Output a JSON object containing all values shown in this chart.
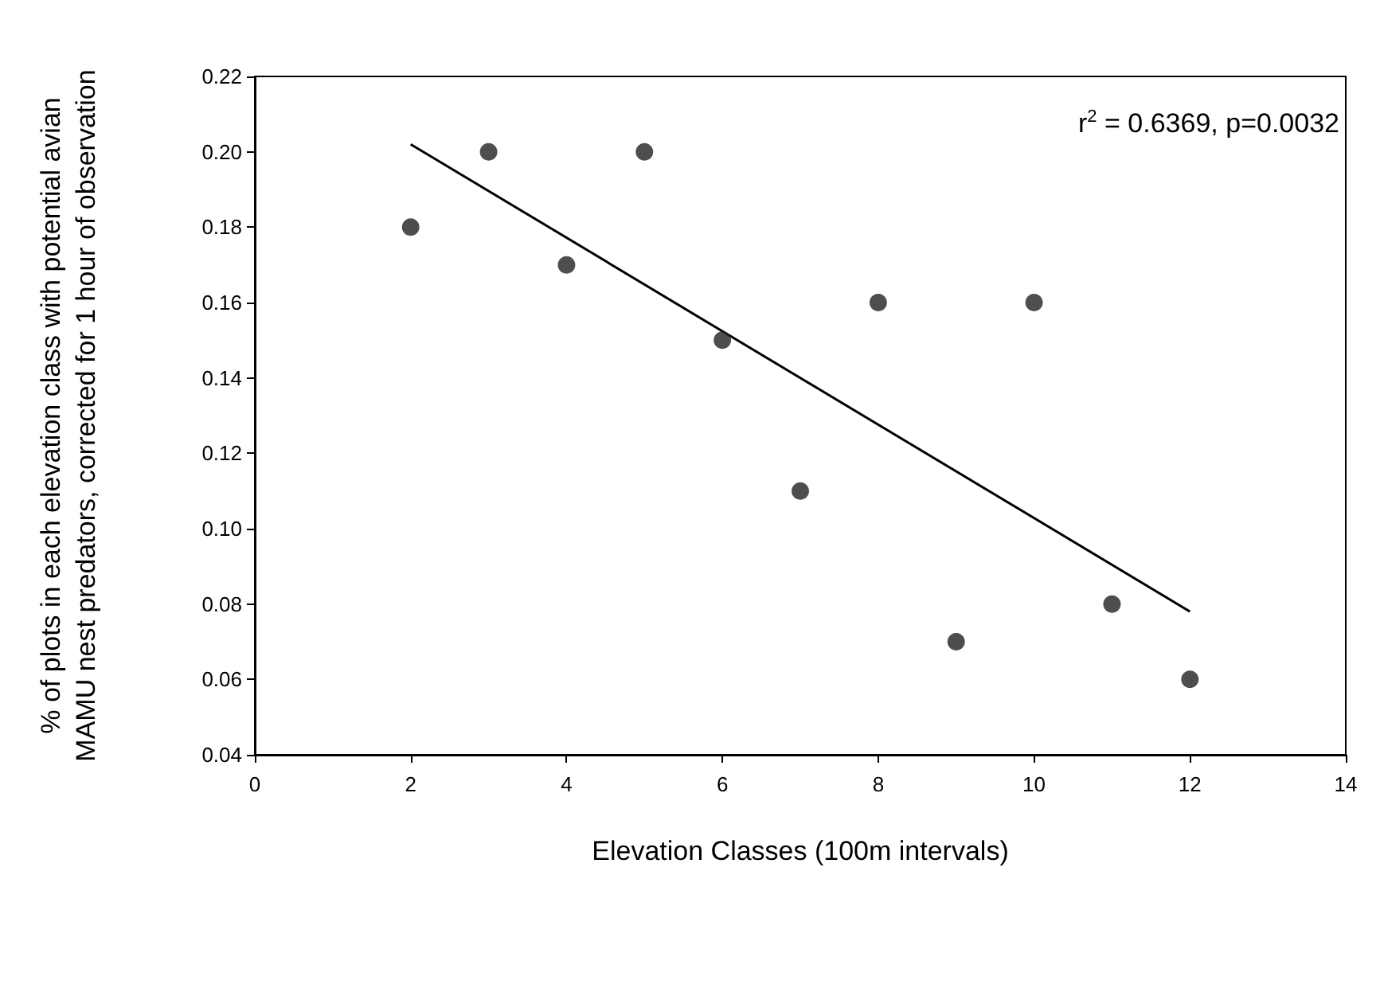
{
  "chart_data": {
    "type": "scatter",
    "xlabel": "Elevation Classes (100m intervals)",
    "ylabel": "% of plots in each elevation class with potential avian\nMAMU nest predators, corrected for 1 hour of observation",
    "series": [
      {
        "color": "#222222",
        "marker": "circle",
        "x": [
          2,
          3,
          4,
          5,
          6,
          7,
          8,
          9,
          10,
          11,
          12
        ],
        "values": [
          0.18,
          0.2,
          0.17,
          0.2,
          0.15,
          0.11,
          0.16,
          0.07,
          0.16,
          0.08,
          0.06
        ]
      },
      {
        "type": "line",
        "marker": "none",
        "color": "#000000",
        "x": [
          2,
          12
        ],
        "values": [
          0.202,
          0.078
        ]
      }
    ],
    "grid": false,
    "annotations": [
      "r$^{2}$ = 0.6369, p=0.0032"
    ],
    "xlim": [
      0,
      14
    ],
    "xticks": [
      0,
      2,
      4,
      6,
      8,
      10,
      12,
      14
    ],
    "ylim": [
      0.04,
      0.22
    ],
    "yticks": [
      {
        "value": 0.04,
        "label": "0.04"
      },
      {
        "value": 0.06,
        "label": "0.06"
      },
      {
        "value": 0.08,
        "label": "0.08"
      },
      {
        "value": 0.1,
        "label": "0.10"
      },
      {
        "value": 0.12,
        "label": "0.12"
      },
      {
        "value": 0.14,
        "label": "0.14"
      },
      {
        "value": 0.16,
        "label": "0.16"
      },
      {
        "value": 0.18,
        "label": "0.18"
      },
      {
        "value": 0.2,
        "label": "0.20"
      },
      {
        "value": 0.22,
        "label": "0.22"
      }
    ]
  }
}
